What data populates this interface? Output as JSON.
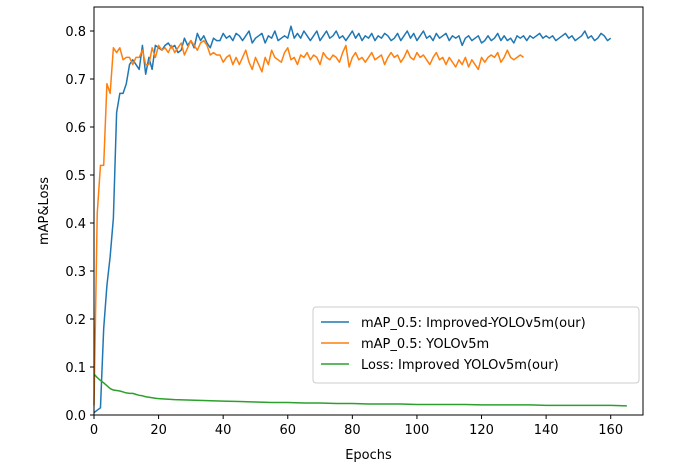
{
  "chart_data": {
    "type": "line",
    "title": "",
    "xlabel": "Epochs",
    "ylabel": "mAP&Loss",
    "xlim": [
      0,
      170
    ],
    "ylim": [
      0,
      0.85
    ],
    "xticks": [
      0,
      20,
      40,
      60,
      80,
      100,
      120,
      140,
      160
    ],
    "yticks": [
      0.0,
      0.1,
      0.2,
      0.3,
      0.4,
      0.5,
      0.6,
      0.7,
      0.8
    ],
    "xtick_labels": [
      "0",
      "20",
      "40",
      "60",
      "80",
      "100",
      "120",
      "140",
      "160"
    ],
    "ytick_labels": [
      "0.0",
      "0.1",
      "0.2",
      "0.3",
      "0.4",
      "0.5",
      "0.6",
      "0.7",
      "0.8"
    ],
    "legend_position": "lower-right",
    "series": [
      {
        "name": "mAP_0.5: Improved-YOLOv5m(our)",
        "color": "#1f77b4",
        "x": [
          0,
          1,
          2,
          3,
          4,
          5,
          6,
          7,
          8,
          9,
          10,
          11,
          12,
          13,
          14,
          15,
          16,
          17,
          18,
          19,
          20,
          21,
          22,
          23,
          24,
          25,
          26,
          27,
          28,
          29,
          30,
          31,
          32,
          33,
          34,
          35,
          36,
          37,
          38,
          39,
          40,
          41,
          42,
          43,
          44,
          45,
          46,
          47,
          48,
          49,
          50,
          51,
          52,
          53,
          54,
          55,
          56,
          57,
          58,
          59,
          60,
          61,
          62,
          63,
          64,
          65,
          66,
          67,
          68,
          69,
          70,
          71,
          72,
          73,
          74,
          75,
          76,
          77,
          78,
          79,
          80,
          81,
          82,
          83,
          84,
          85,
          86,
          87,
          88,
          89,
          90,
          91,
          92,
          93,
          94,
          95,
          96,
          97,
          98,
          99,
          100,
          101,
          102,
          103,
          104,
          105,
          106,
          107,
          108,
          109,
          110,
          111,
          112,
          113,
          114,
          115,
          116,
          117,
          118,
          119,
          120,
          121,
          122,
          123,
          124,
          125,
          126,
          127,
          128,
          129,
          130,
          131,
          132,
          133,
          134,
          135,
          136,
          137,
          138,
          139,
          140,
          141,
          142,
          143,
          144,
          145,
          146,
          147,
          148,
          149,
          150,
          151,
          152,
          153,
          154,
          155,
          156,
          157,
          158,
          159,
          160
        ],
        "y": [
          0.005,
          0.01,
          0.015,
          0.18,
          0.27,
          0.33,
          0.41,
          0.63,
          0.67,
          0.67,
          0.69,
          0.73,
          0.74,
          0.73,
          0.72,
          0.77,
          0.71,
          0.745,
          0.72,
          0.77,
          0.765,
          0.76,
          0.77,
          0.775,
          0.765,
          0.77,
          0.755,
          0.76,
          0.785,
          0.77,
          0.78,
          0.765,
          0.795,
          0.78,
          0.79,
          0.775,
          0.765,
          0.785,
          0.78,
          0.78,
          0.795,
          0.785,
          0.79,
          0.78,
          0.795,
          0.79,
          0.78,
          0.79,
          0.8,
          0.775,
          0.785,
          0.79,
          0.795,
          0.775,
          0.79,
          0.785,
          0.8,
          0.78,
          0.785,
          0.79,
          0.785,
          0.81,
          0.785,
          0.795,
          0.785,
          0.8,
          0.79,
          0.78,
          0.79,
          0.8,
          0.78,
          0.79,
          0.8,
          0.785,
          0.79,
          0.8,
          0.785,
          0.79,
          0.78,
          0.79,
          0.8,
          0.785,
          0.795,
          0.78,
          0.79,
          0.785,
          0.795,
          0.78,
          0.79,
          0.785,
          0.795,
          0.79,
          0.78,
          0.785,
          0.795,
          0.78,
          0.79,
          0.8,
          0.785,
          0.795,
          0.78,
          0.79,
          0.8,
          0.785,
          0.79,
          0.78,
          0.795,
          0.785,
          0.79,
          0.795,
          0.78,
          0.79,
          0.785,
          0.79,
          0.77,
          0.785,
          0.79,
          0.78,
          0.785,
          0.79,
          0.775,
          0.78,
          0.79,
          0.78,
          0.785,
          0.795,
          0.78,
          0.79,
          0.78,
          0.785,
          0.775,
          0.79,
          0.785,
          0.79,
          0.78,
          0.79,
          0.785,
          0.79,
          0.795,
          0.785,
          0.79,
          0.785,
          0.79,
          0.78,
          0.785,
          0.79,
          0.795,
          0.785,
          0.79,
          0.78,
          0.785,
          0.79,
          0.8,
          0.785,
          0.79,
          0.78,
          0.785,
          0.795,
          0.79,
          0.78,
          0.785
        ]
      },
      {
        "name": "mAP_0.5: YOLOv5m",
        "color": "#ff7f0e",
        "x": [
          0,
          1,
          2,
          3,
          4,
          5,
          6,
          7,
          8,
          9,
          10,
          11,
          12,
          13,
          14,
          15,
          16,
          17,
          18,
          19,
          20,
          21,
          22,
          23,
          24,
          25,
          26,
          27,
          28,
          29,
          30,
          31,
          32,
          33,
          34,
          35,
          36,
          37,
          38,
          39,
          40,
          41,
          42,
          43,
          44,
          45,
          46,
          47,
          48,
          49,
          50,
          51,
          52,
          53,
          54,
          55,
          56,
          57,
          58,
          59,
          60,
          61,
          62,
          63,
          64,
          65,
          66,
          67,
          68,
          69,
          70,
          71,
          72,
          73,
          74,
          75,
          76,
          77,
          78,
          79,
          80,
          81,
          82,
          83,
          84,
          85,
          86,
          87,
          88,
          89,
          90,
          91,
          92,
          93,
          94,
          95,
          96,
          97,
          98,
          99,
          100,
          101,
          102,
          103,
          104,
          105,
          106,
          107,
          108,
          109,
          110,
          111,
          112,
          113,
          114,
          115,
          116,
          117,
          118,
          119,
          120,
          121,
          122,
          123,
          124,
          125,
          126,
          127,
          128,
          129,
          130,
          131,
          132,
          133
        ],
        "y": [
          0.02,
          0.42,
          0.52,
          0.52,
          0.69,
          0.67,
          0.765,
          0.755,
          0.765,
          0.74,
          0.745,
          0.745,
          0.73,
          0.745,
          0.745,
          0.76,
          0.73,
          0.73,
          0.765,
          0.745,
          0.77,
          0.76,
          0.765,
          0.755,
          0.77,
          0.755,
          0.765,
          0.775,
          0.75,
          0.765,
          0.78,
          0.77,
          0.76,
          0.775,
          0.78,
          0.77,
          0.75,
          0.755,
          0.75,
          0.75,
          0.735,
          0.745,
          0.75,
          0.73,
          0.745,
          0.73,
          0.745,
          0.76,
          0.735,
          0.72,
          0.745,
          0.73,
          0.715,
          0.745,
          0.73,
          0.76,
          0.745,
          0.74,
          0.735,
          0.755,
          0.765,
          0.74,
          0.745,
          0.73,
          0.75,
          0.745,
          0.755,
          0.74,
          0.75,
          0.745,
          0.73,
          0.755,
          0.745,
          0.74,
          0.75,
          0.745,
          0.735,
          0.755,
          0.77,
          0.725,
          0.745,
          0.755,
          0.74,
          0.745,
          0.735,
          0.745,
          0.755,
          0.74,
          0.745,
          0.75,
          0.73,
          0.745,
          0.755,
          0.745,
          0.75,
          0.735,
          0.745,
          0.76,
          0.745,
          0.74,
          0.755,
          0.745,
          0.75,
          0.74,
          0.73,
          0.745,
          0.755,
          0.74,
          0.745,
          0.73,
          0.745,
          0.735,
          0.725,
          0.74,
          0.73,
          0.745,
          0.725,
          0.74,
          0.73,
          0.72,
          0.745,
          0.735,
          0.745,
          0.75,
          0.745,
          0.755,
          0.735,
          0.745,
          0.76,
          0.745,
          0.74,
          0.745,
          0.75,
          0.745
        ]
      },
      {
        "name": "Loss: Improved YOLOv5m(our)",
        "color": "#2ca02c",
        "x": [
          0,
          1,
          2,
          3,
          4,
          5,
          6,
          7,
          8,
          9,
          10,
          11,
          12,
          13,
          14,
          15,
          16,
          17,
          18,
          19,
          20,
          25,
          30,
          35,
          40,
          45,
          50,
          55,
          60,
          65,
          70,
          75,
          80,
          85,
          90,
          95,
          100,
          105,
          110,
          115,
          120,
          125,
          130,
          135,
          140,
          145,
          150,
          155,
          160,
          165
        ],
        "y": [
          0.085,
          0.078,
          0.072,
          0.067,
          0.061,
          0.055,
          0.052,
          0.051,
          0.05,
          0.048,
          0.046,
          0.045,
          0.045,
          0.043,
          0.041,
          0.04,
          0.038,
          0.037,
          0.036,
          0.035,
          0.034,
          0.032,
          0.031,
          0.03,
          0.029,
          0.028,
          0.027,
          0.026,
          0.026,
          0.025,
          0.025,
          0.024,
          0.024,
          0.023,
          0.023,
          0.023,
          0.022,
          0.022,
          0.022,
          0.022,
          0.021,
          0.021,
          0.021,
          0.021,
          0.02,
          0.02,
          0.02,
          0.02,
          0.02,
          0.019
        ]
      }
    ]
  }
}
